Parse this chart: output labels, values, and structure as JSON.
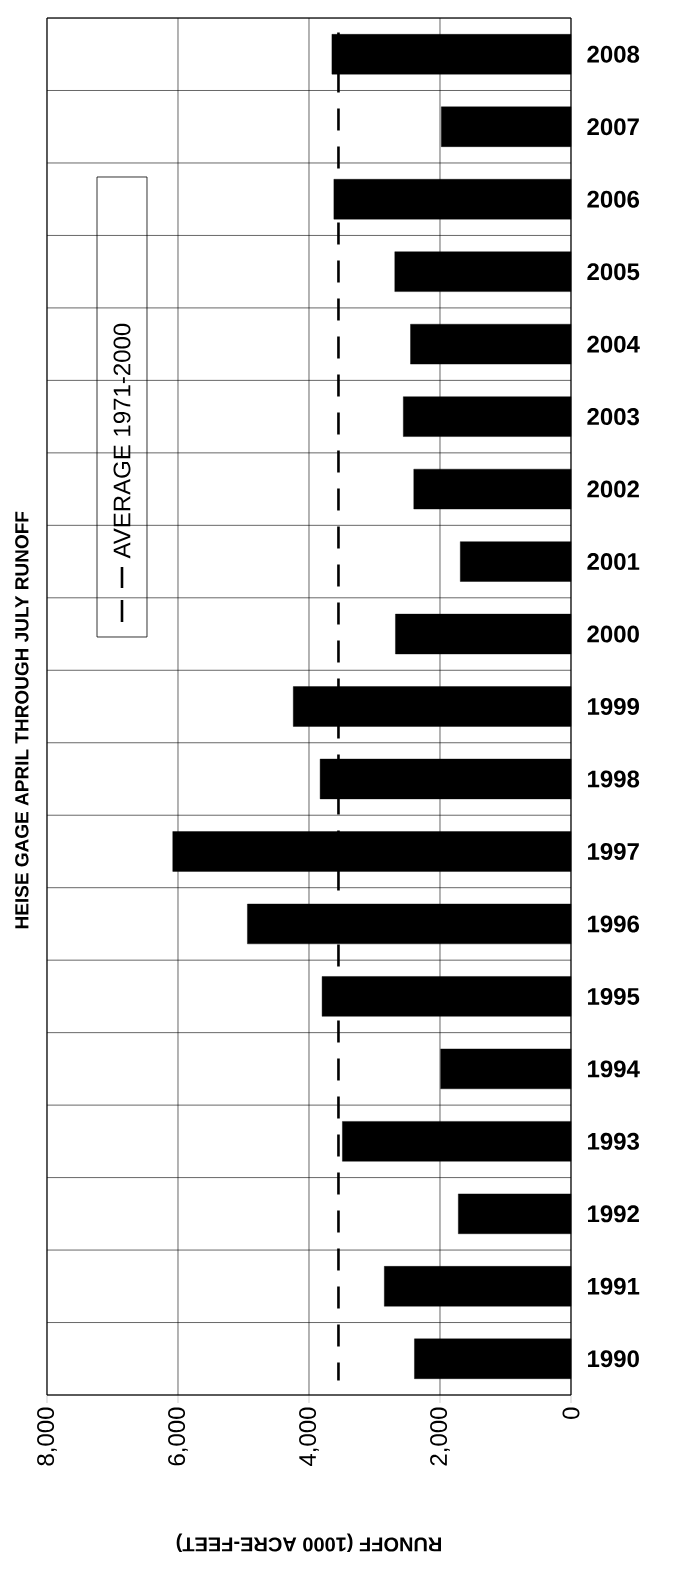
{
  "chart_data": {
    "type": "bar",
    "orientation": "horizontal",
    "title": "HEISE GAGE APRIL THROUGH JULY RUNOFF",
    "xlabel": "RUNOFF (1000 ACRE-FEET)",
    "categories": [
      "2008",
      "2007",
      "2006",
      "2005",
      "2004",
      "2003",
      "2002",
      "2001",
      "2000",
      "1999",
      "1998",
      "1997",
      "1996",
      "1995",
      "1994",
      "1993",
      "1992",
      "1991",
      "1990"
    ],
    "values": [
      3650,
      1980,
      3620,
      2690,
      2450,
      2560,
      2400,
      1690,
      2680,
      4240,
      3830,
      6080,
      4940,
      3800,
      1990,
      3490,
      1720,
      2850,
      2390
    ],
    "color": "#000000",
    "xlim": [
      8000,
      0
    ],
    "xticks": [
      {
        "value": 8000,
        "label": "8,000"
      },
      {
        "value": 6000,
        "label": "6,000"
      },
      {
        "value": 4000,
        "label": "4,000"
      },
      {
        "value": 2000,
        "label": "2,000"
      },
      0
    ],
    "grid": true,
    "legend": "top left",
    "ref_lines": [
      {
        "axis": "x",
        "value": 3550,
        "label": "AVERAGE 1971-2000",
        "line_style": "dashed",
        "color": "#000000"
      }
    ]
  }
}
